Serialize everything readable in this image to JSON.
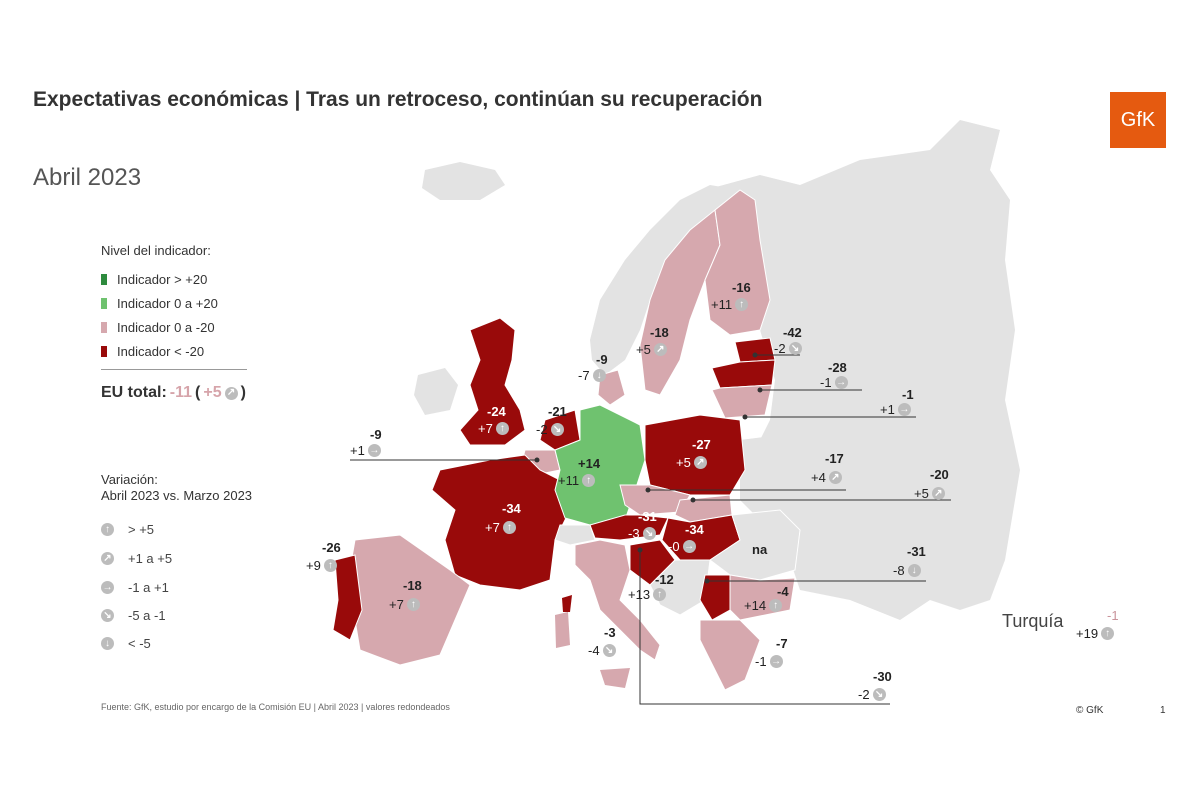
{
  "header": {
    "title": "Expectativas económicas | Tras un retroceso, continúan su recuperación",
    "subtitle": "Abril 2023",
    "logo": "GfK"
  },
  "colors": {
    "above_20": "#2e8b3e",
    "zero_to_20": "#6fc26f",
    "zero_to_minus20": "#d6a8ae",
    "below_minus20": "#990a0a",
    "no_data": "#e3e3e3",
    "logo": "#e55a10"
  },
  "legend": {
    "title": "Nivel del indicador:",
    "items": [
      {
        "label": "Indicador > +20",
        "color": "#2e8b3e"
      },
      {
        "label": "Indicador 0 a +20",
        "color": "#6fc26f"
      },
      {
        "label": "Indicador 0 a -20",
        "color": "#d6a8ae"
      },
      {
        "label": "Indicador < -20",
        "color": "#990a0a"
      }
    ]
  },
  "eu_total": {
    "label": "EU total:",
    "value": "-11",
    "open": "(",
    "change": "+5",
    "close": ")",
    "icon": "arrow-up-right-icon"
  },
  "variation": {
    "title_line1": "Variación:",
    "title_line2": "Abril 2023 vs. Marzo 2023",
    "items": [
      {
        "label": "> +5",
        "icon": "arrow-up-icon"
      },
      {
        "label": "+1 a +5",
        "icon": "arrow-up-right-icon"
      },
      {
        "label": "-1 a +1",
        "icon": "arrow-right-icon"
      },
      {
        "label": "-5 a -1",
        "icon": "arrow-down-right-icon"
      },
      {
        "label": "< -5",
        "icon": "arrow-down-icon"
      }
    ]
  },
  "countries": [
    {
      "value": "-16",
      "change": "+11",
      "icon": "arrow-up-icon"
    },
    {
      "value": "-18",
      "change": "+5",
      "icon": "arrow-up-right-icon"
    },
    {
      "value": "-42",
      "change": "-2",
      "icon": "arrow-down-right-icon"
    },
    {
      "value": "-28",
      "change": "-1",
      "icon": "arrow-right-icon"
    },
    {
      "value": "-1",
      "change": "+1",
      "icon": "arrow-right-icon"
    },
    {
      "value": "-9",
      "change": "-7",
      "icon": "arrow-down-icon"
    },
    {
      "value": "-24",
      "change": "+7",
      "icon": "arrow-up-icon"
    },
    {
      "value": "-21",
      "change": "-2",
      "icon": "arrow-down-right-icon"
    },
    {
      "value": "-9",
      "change": "+1",
      "icon": "arrow-right-icon"
    },
    {
      "value": "+14",
      "change": "+11",
      "icon": "arrow-up-icon"
    },
    {
      "value": "-27",
      "change": "+5",
      "icon": "arrow-up-right-icon"
    },
    {
      "value": "-17",
      "change": "+4",
      "icon": "arrow-up-right-icon"
    },
    {
      "value": "-20",
      "change": "+5",
      "icon": "arrow-up-right-icon"
    },
    {
      "value": "-34",
      "change": "+7",
      "icon": "arrow-up-icon"
    },
    {
      "value": "-31",
      "change": "-3",
      "icon": "arrow-down-right-icon"
    },
    {
      "value": "-34",
      "change": "-0",
      "icon": "arrow-right-icon"
    },
    {
      "value": "na"
    },
    {
      "value": "-31",
      "change": "-8",
      "icon": "arrow-down-icon"
    },
    {
      "value": "-26",
      "change": "+9",
      "icon": "arrow-up-icon"
    },
    {
      "value": "-18",
      "change": "+7",
      "icon": "arrow-up-icon"
    },
    {
      "value": "-12",
      "change": "+13",
      "icon": "arrow-up-icon"
    },
    {
      "value": "-4",
      "change": "+14",
      "icon": "arrow-up-icon"
    },
    {
      "value": "-3",
      "change": "-4",
      "icon": "arrow-down-right-icon"
    },
    {
      "value": "-7",
      "change": "-1",
      "icon": "arrow-right-icon"
    },
    {
      "value": "-30",
      "change": "-2",
      "icon": "arrow-down-right-icon"
    }
  ],
  "turkey": {
    "label": "Turquía",
    "value": "-1",
    "change": "+19",
    "icon": "arrow-up-icon"
  },
  "footer": {
    "source": "Fuente: GfK, estudio por encargo de la Comisión  EU  | Abril 2023 | valores redondeados",
    "copyright": "© GfK",
    "page": "1"
  }
}
